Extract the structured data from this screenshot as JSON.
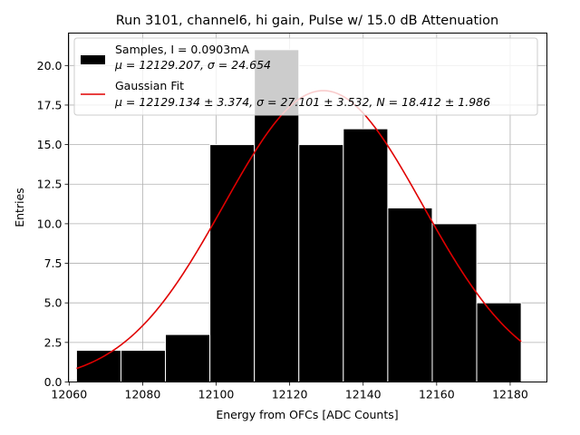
{
  "chart_data": {
    "type": "bar",
    "title": "Run 3101, channel6, hi gain, Pulse w/ 15.0 dB Attenuation",
    "xlabel": "Energy from OFCs [ADC Counts]",
    "ylabel": "Entries",
    "xlim": [
      12059.8,
      12190
    ],
    "ylim": [
      0,
      22.05
    ],
    "grid": true,
    "legend_position": "top-right",
    "x_ticks": [
      "12060",
      "12080",
      "12100",
      "12120",
      "12140",
      "12160",
      "12180"
    ],
    "y_ticks": [
      "0.0",
      "2.5",
      "5.0",
      "7.5",
      "10.0",
      "12.5",
      "15.0",
      "17.5",
      "20.0"
    ],
    "histogram": {
      "name_line1": "Samples, I = 0.0903mA",
      "name_line2": "μ = 12129.207, σ = 24.654",
      "bin_edges": [
        12062,
        12074.1,
        12086.2,
        12098.3,
        12110.4,
        12122.5,
        12134.6,
        12146.7,
        12158.8,
        12170.9,
        12183
      ],
      "counts": [
        2,
        2,
        3,
        15,
        21,
        15,
        16,
        11,
        10,
        5
      ],
      "color": "#000000",
      "edge_color": "#ffffff"
    },
    "fit": {
      "name_line1": "Gaussian Fit",
      "name_line2": "μ = 12129.134 ± 3.374, σ = 27.101 ± 3.532, N = 18.412 ± 1.986",
      "mu": 12129.134,
      "sigma": 27.101,
      "amplitude": 18.412,
      "x_range": [
        12062,
        12183
      ],
      "color": "#e00000"
    }
  }
}
